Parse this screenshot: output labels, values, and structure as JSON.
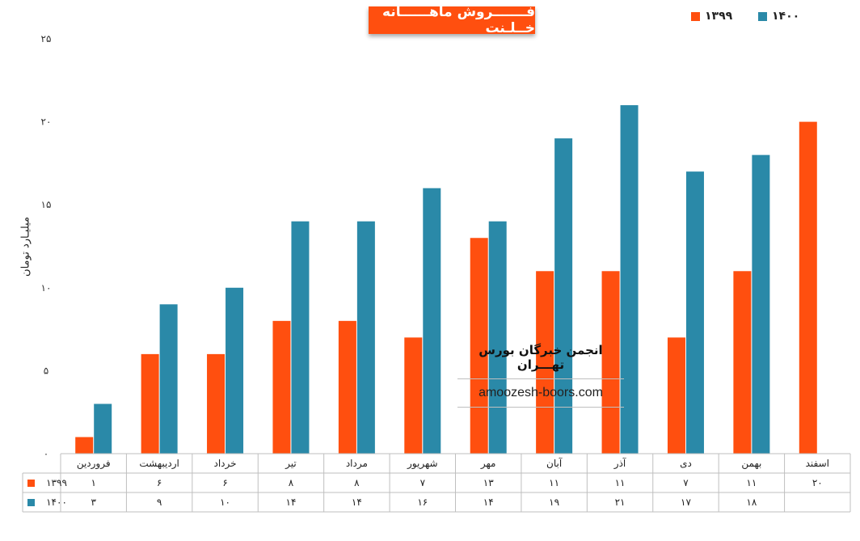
{
  "title": "فـــــــروش ماهــــــانه خــلـنت",
  "ylabel": "میلیـارد تومان",
  "watermark": {
    "line1": "انجمن خبرگان بورس تهـــران",
    "line2": "amoozesh-boors.com"
  },
  "colors": {
    "s1399": "#ff4f0f",
    "s1400": "#2a89a8",
    "grid": "#d9d9d9",
    "table": "#bfbfbf"
  },
  "chart_data": {
    "type": "bar",
    "categories": [
      "فروردین",
      "اردیبهشت",
      "خرداد",
      "تیر",
      "مرداد",
      "شهریور",
      "مهر",
      "آبان",
      "آذر",
      "دی",
      "بهمن",
      "اسفند"
    ],
    "series": [
      {
        "name": "۱۳۹۹",
        "values": [
          1,
          6,
          6,
          8,
          8,
          7,
          13,
          11,
          11,
          7,
          11,
          20
        ]
      },
      {
        "name": "۱۴۰۰",
        "values": [
          3,
          9,
          10,
          14,
          14,
          16,
          14,
          19,
          21,
          17,
          18,
          null
        ]
      }
    ],
    "value_labels": {
      "s1399": [
        "۱",
        "۶",
        "۶",
        "۸",
        "۸",
        "۷",
        "۱۳",
        "۱۱",
        "۱۱",
        "۷",
        "۱۱",
        "۲۰"
      ],
      "s1400": [
        "۳",
        "۹",
        "۱۰",
        "۱۴",
        "۱۴",
        "۱۶",
        "۱۴",
        "۱۹",
        "۲۱",
        "۱۷",
        "۱۸",
        ""
      ]
    },
    "ylim": [
      0,
      25
    ],
    "yticks": [
      0,
      5,
      10,
      15,
      20,
      25
    ],
    "ytick_labels": [
      "۰",
      "۵",
      "۱۰",
      "۱۵",
      "۲۰",
      "۲۵"
    ],
    "legend_position": "top-right",
    "data_table": true
  }
}
